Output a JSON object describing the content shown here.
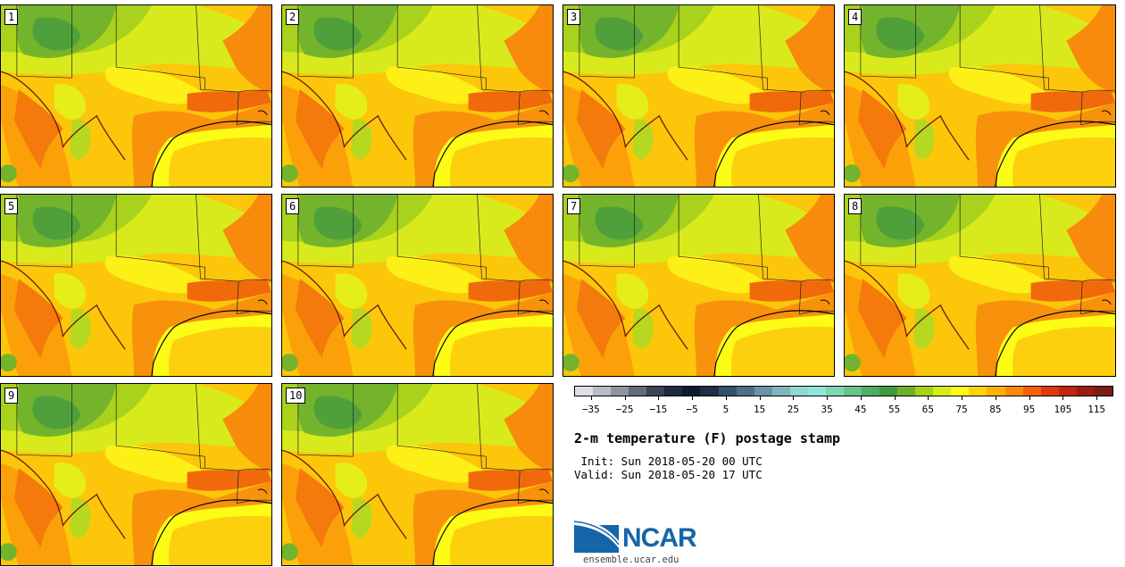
{
  "panels": [
    {
      "label": "1"
    },
    {
      "label": "2"
    },
    {
      "label": "3"
    },
    {
      "label": "4"
    },
    {
      "label": "5"
    },
    {
      "label": "6"
    },
    {
      "label": "7"
    },
    {
      "label": "8"
    },
    {
      "label": "9"
    },
    {
      "label": "10"
    }
  ],
  "colorbar": {
    "colors": [
      "#dde0e6",
      "#b8bcc4",
      "#8f949e",
      "#636a78",
      "#3a4456",
      "#1f2a3e",
      "#0e1a2e",
      "#1c2f45",
      "#34506a",
      "#4c6f88",
      "#6a93a6",
      "#7fb5bd",
      "#8fd8d2",
      "#90e6d8",
      "#7fd6b0",
      "#66c48a",
      "#4eae62",
      "#3f9a3e",
      "#6fb02a",
      "#a6d21a",
      "#d6ec18",
      "#fcfc16",
      "#fcd40c",
      "#fcb00a",
      "#fc8a0a",
      "#f2620c",
      "#e0380e",
      "#c0260e",
      "#9c1c10",
      "#7a1c12"
    ],
    "tick_labels": [
      "−35",
      "−25",
      "−15",
      "−5",
      "5",
      "15",
      "25",
      "35",
      "45",
      "55",
      "65",
      "75",
      "85",
      "95",
      "105",
      "115"
    ],
    "tick_values": [
      -35,
      -25,
      -15,
      -5,
      5,
      15,
      25,
      35,
      45,
      55,
      65,
      75,
      85,
      95,
      105,
      115
    ],
    "range": [
      -40,
      120
    ]
  },
  "title": "2-m temperature (F) postage stamp",
  "init": " Init: Sun 2018-05-20 00 UTC",
  "valid": "Valid: Sun 2018-05-20 17 UTC",
  "logo": {
    "text": "NCAR",
    "website": "ensemble.ucar.edu"
  }
}
